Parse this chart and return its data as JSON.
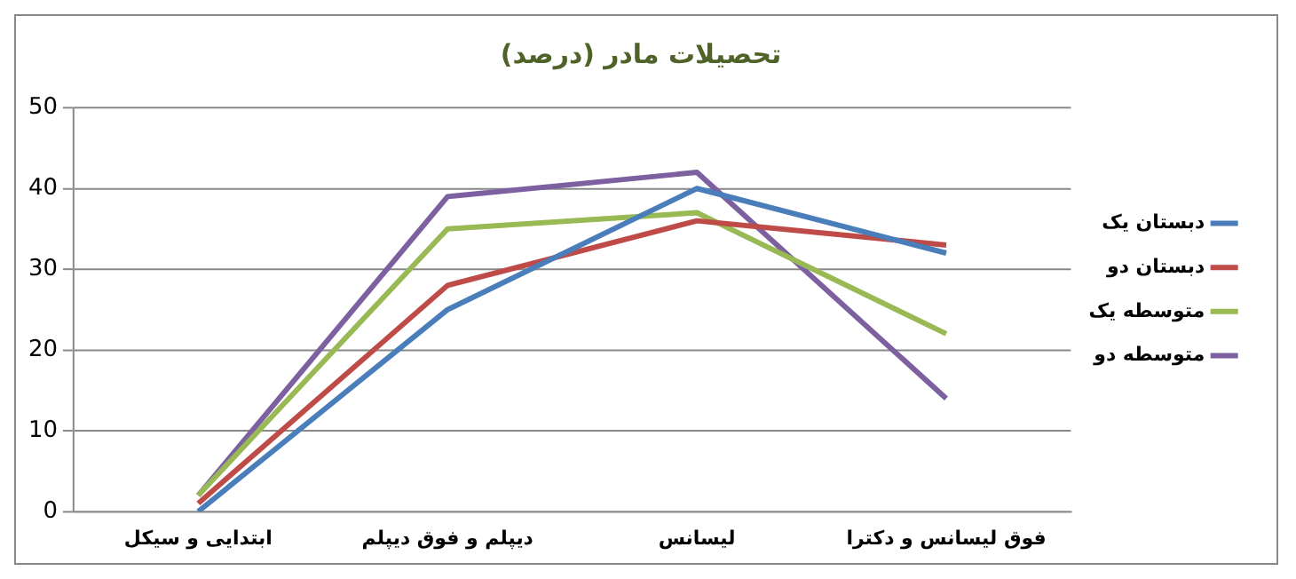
{
  "chart_data": {
    "type": "line",
    "title": "تحصیلات مادر (درصد)",
    "categories": [
      "ابتدایی و سیکل",
      "دیپلم و فوق دیپلم",
      "لیسانس",
      "فوق لیسانس و دکترا"
    ],
    "series": [
      {
        "name": "دبستان یک",
        "color": "#4a7ebb",
        "values": [
          0,
          25,
          40,
          32
        ]
      },
      {
        "name": "دبستان دو",
        "color": "#be4b48",
        "values": [
          1,
          28,
          36,
          33
        ]
      },
      {
        "name": "متوسطه یک",
        "color": "#98b954",
        "values": [
          2,
          35,
          37,
          22
        ]
      },
      {
        "name": "متوسطه دو",
        "color": "#7d60a0",
        "values": [
          2,
          39,
          42,
          14
        ]
      }
    ],
    "ylim": [
      0,
      50
    ],
    "yticks": [
      0,
      10,
      20,
      30,
      40,
      50
    ],
    "grid": "y",
    "legend": "right",
    "marker": "none",
    "line_style": "solid"
  }
}
